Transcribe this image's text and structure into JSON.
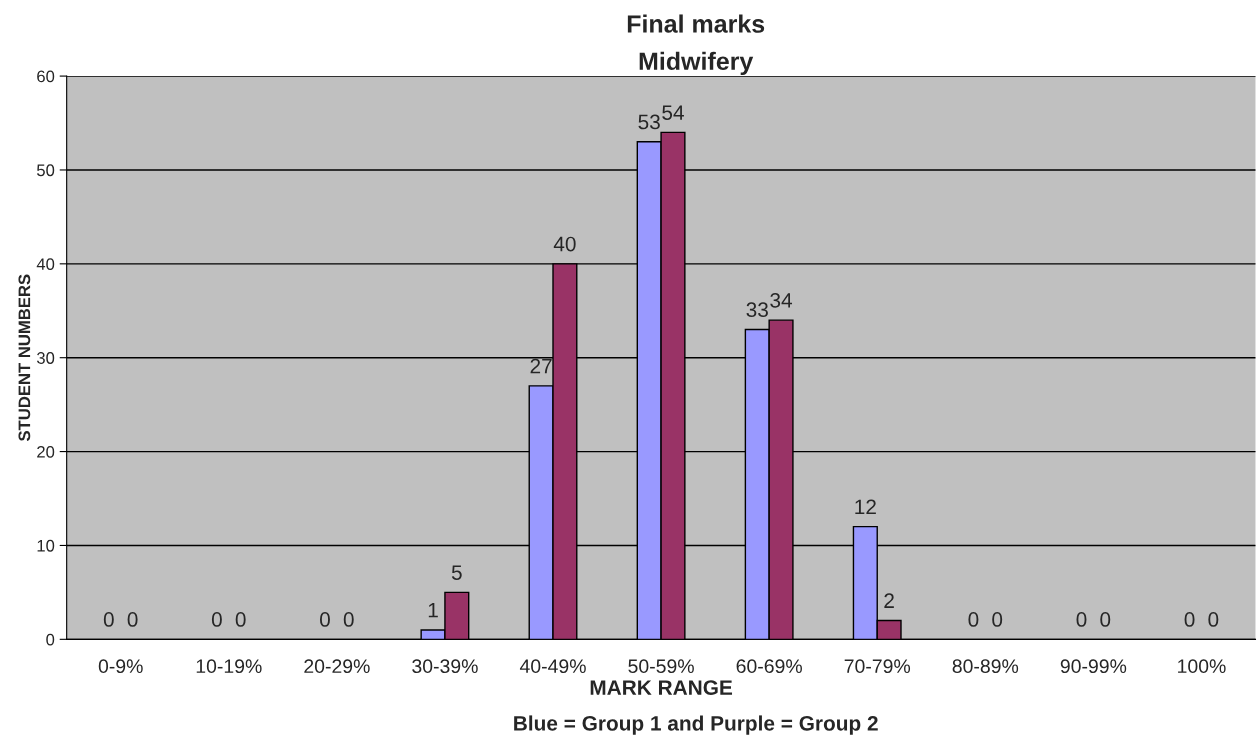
{
  "chart_data": {
    "type": "bar",
    "title": "Final marks",
    "subtitle": "Midwifery",
    "xlabel": "MARK RANGE",
    "ylabel": "STUDENT NUMBERS",
    "categories": [
      "0-9%",
      "10-19%",
      "20-29%",
      "30-39%",
      "40-49%",
      "50-59%",
      "60-69%",
      "70-79%",
      "80-89%",
      "90-99%",
      "100%"
    ],
    "series": [
      {
        "color": "#9999ff",
        "values": [
          0,
          0,
          0,
          1,
          27,
          53,
          33,
          12,
          0,
          0,
          0
        ]
      },
      {
        "color": "#993366",
        "values": [
          0,
          0,
          0,
          5,
          40,
          54,
          34,
          2,
          0,
          0,
          0
        ]
      }
    ],
    "ylim": [
      0,
      60
    ],
    "yticks": [
      0,
      10,
      20,
      30,
      40,
      50,
      60
    ],
    "grid": "y",
    "data_labels": true,
    "annotations": [
      "Blue = Group 1 and Purple = Group 2"
    ]
  }
}
